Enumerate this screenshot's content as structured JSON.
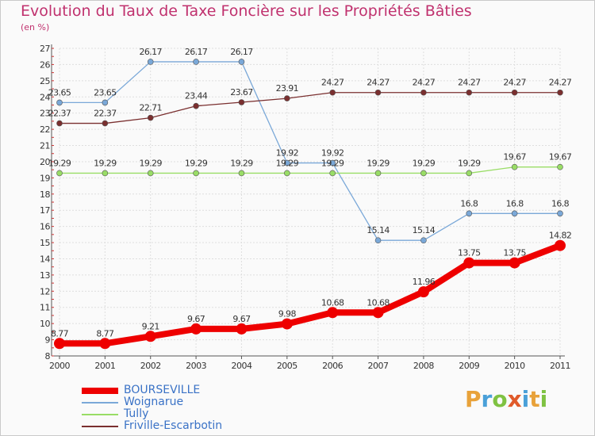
{
  "title": "Evolution du Taux de Taxe Foncière sur les Propriétés Bâties",
  "unit": "(en %)",
  "logo": {
    "text": "Proxiti",
    "colors": [
      "#e8a23a",
      "#4aa0d8",
      "#7fc242",
      "#e05a2a",
      "#4aa0d8",
      "#e8a23a",
      "#7fc242"
    ]
  },
  "chart_data": {
    "type": "line",
    "x": [
      "2000",
      "2001",
      "2002",
      "2003",
      "2004",
      "2005",
      "2006",
      "2007",
      "2008",
      "2009",
      "2010",
      "2011"
    ],
    "ylim": [
      8,
      27
    ],
    "yticks": [
      8,
      9,
      10,
      11,
      12,
      13,
      14,
      15,
      16,
      17,
      18,
      19,
      20,
      21,
      22,
      23,
      24,
      25,
      26,
      27
    ],
    "grid": true,
    "legend_position": "bottom-left",
    "series": [
      {
        "name": "BOURSEVILLE",
        "color": "#ee0000",
        "width": 8,
        "marker": 7,
        "values": [
          8.77,
          8.77,
          9.21,
          9.67,
          9.67,
          9.98,
          10.68,
          10.68,
          11.96,
          13.75,
          13.75,
          14.82
        ],
        "labels": [
          "8.77",
          "8.77",
          "9.21",
          "9.67",
          "9.67",
          "9.98",
          "10.68",
          "10.68",
          "11.96",
          "13.75",
          "13.75",
          "14.82"
        ]
      },
      {
        "name": "Woignarue",
        "color": "#7aa8d8",
        "width": 1.3,
        "marker": 3.5,
        "values": [
          23.65,
          23.65,
          26.17,
          26.17,
          26.17,
          19.92,
          19.92,
          15.14,
          15.14,
          16.8,
          16.8,
          16.8
        ],
        "labels": [
          "23.65",
          "23.65",
          "26.17",
          "26.17",
          "26.17",
          "19.92",
          "19.92",
          "15.14",
          "15.14",
          "16.8",
          "16.8",
          "16.8"
        ]
      },
      {
        "name": "Tully",
        "color": "#99dd66",
        "width": 1.3,
        "marker": 3.5,
        "values": [
          19.29,
          19.29,
          19.29,
          19.29,
          19.29,
          19.29,
          19.29,
          19.29,
          19.29,
          19.29,
          19.67,
          19.67
        ],
        "labels": [
          "19.29",
          "19.29",
          "19.29",
          "19.29",
          "19.29",
          "19.29",
          "19.29",
          "19.29",
          "19.29",
          "19.29",
          "19.67",
          "19.67"
        ]
      },
      {
        "name": "Friville-Escarbotin",
        "color": "#7a2f2f",
        "width": 1.3,
        "marker": 3.5,
        "values": [
          22.37,
          22.37,
          22.71,
          23.44,
          23.67,
          23.91,
          24.27,
          24.27,
          24.27,
          24.27,
          24.27,
          24.27
        ],
        "labels": [
          "22.37",
          "22.37",
          "22.71",
          "23.44",
          "23.67",
          "23.91",
          "24.27",
          "24.27",
          "24.27",
          "24.27",
          "24.27",
          "24.27"
        ]
      }
    ]
  }
}
